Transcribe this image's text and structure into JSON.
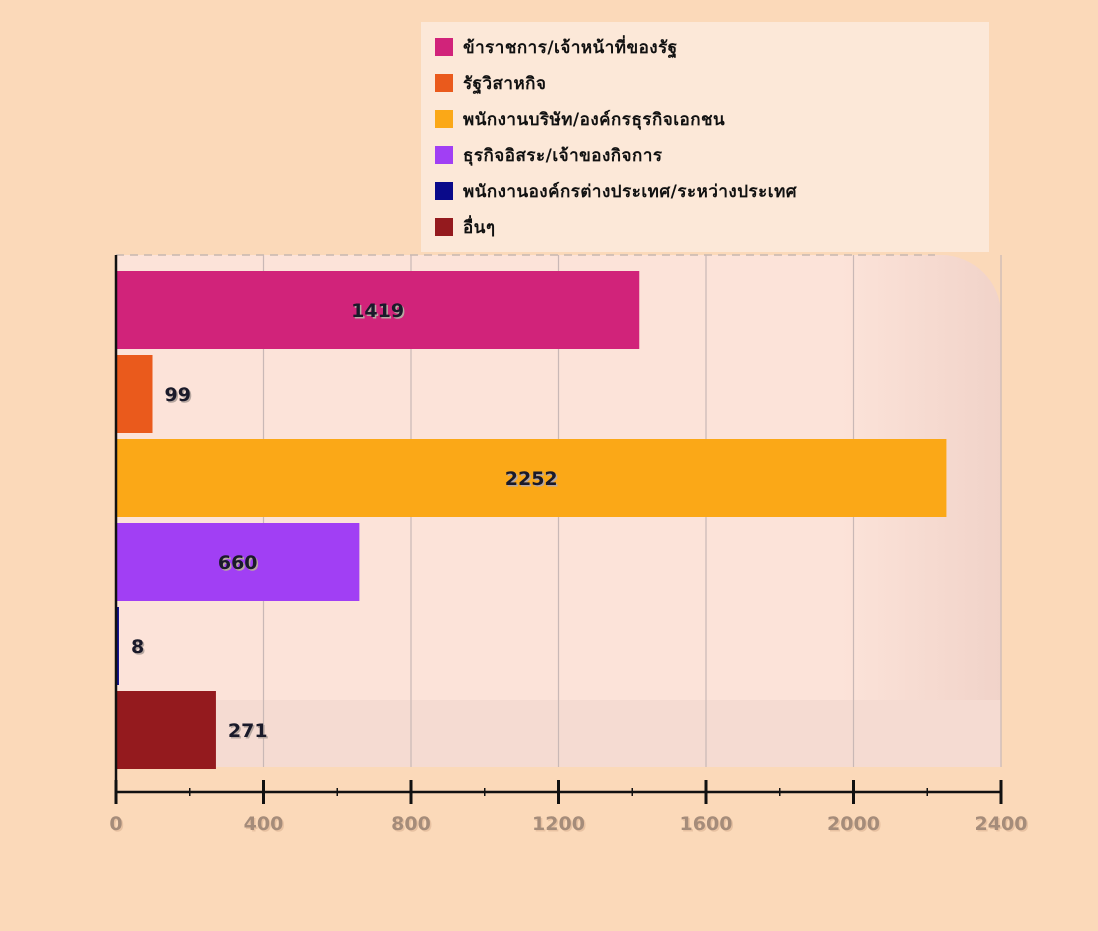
{
  "chart_data": {
    "type": "bar",
    "orientation": "horizontal",
    "categories": [
      "ข้าราชการ/เจ้าหน้าที่ของรัฐ",
      "รัฐวิสาหกิจ",
      "พนักงานบริษัท/องค์กรธุรกิจเอกชน",
      "ธุรกิจอิสระ/เจ้าของกิจการ",
      "พนักงานองค์กรต่างประเทศ/ระหว่างประเทศ",
      "อื่นๆ"
    ],
    "values": [
      1419,
      99,
      2252,
      660,
      8,
      271
    ],
    "value_labels": [
      "1419",
      "99",
      "2252",
      "660",
      "8",
      "271"
    ],
    "colors": [
      "#d1237a",
      "#ea5a1c",
      "#fba817",
      "#a13ff4",
      "#0a0a8a",
      "#941a1e"
    ],
    "xlim": [
      0,
      2400
    ],
    "x_ticks": [
      0,
      400,
      800,
      1200,
      1600,
      2000,
      2400
    ],
    "x_tick_labels": [
      "0",
      "400",
      "800",
      "1200",
      "1600",
      "2000",
      "2400"
    ],
    "grid": true,
    "legend_position": "top-right",
    "title": "",
    "xlabel": "",
    "ylabel": ""
  }
}
